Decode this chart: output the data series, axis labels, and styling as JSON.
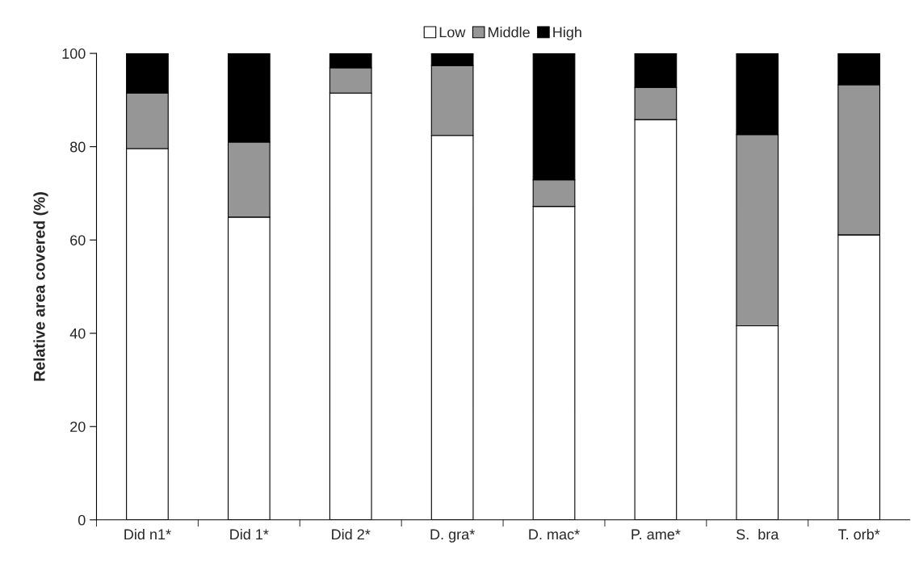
{
  "chart_data": {
    "type": "bar",
    "stacked": true,
    "ylabel": "Relative area covered (%)",
    "categories": [
      "Did n1*",
      "Did 1*",
      "Did 2*",
      "D. gra*",
      "D. mac*",
      "P. ame*",
      "S.  bra",
      "T. orb*"
    ],
    "series": [
      {
        "name": "Low",
        "color": "#ffffff",
        "values": [
          79.6,
          64.9,
          91.5,
          82.4,
          67.2,
          85.8,
          41.6,
          61.1
        ]
      },
      {
        "name": "Middle",
        "color": "#969696",
        "values": [
          11.9,
          16.1,
          5.4,
          15.0,
          5.7,
          6.9,
          41.0,
          32.2
        ]
      },
      {
        "name": "High",
        "color": "#000000",
        "values": [
          8.5,
          19.0,
          3.1,
          2.6,
          27.1,
          7.3,
          17.4,
          6.7
        ]
      }
    ],
    "ylim": [
      0,
      100
    ],
    "yticks": [
      0,
      20,
      40,
      60,
      80,
      100
    ],
    "grid": false,
    "legend": "top"
  }
}
